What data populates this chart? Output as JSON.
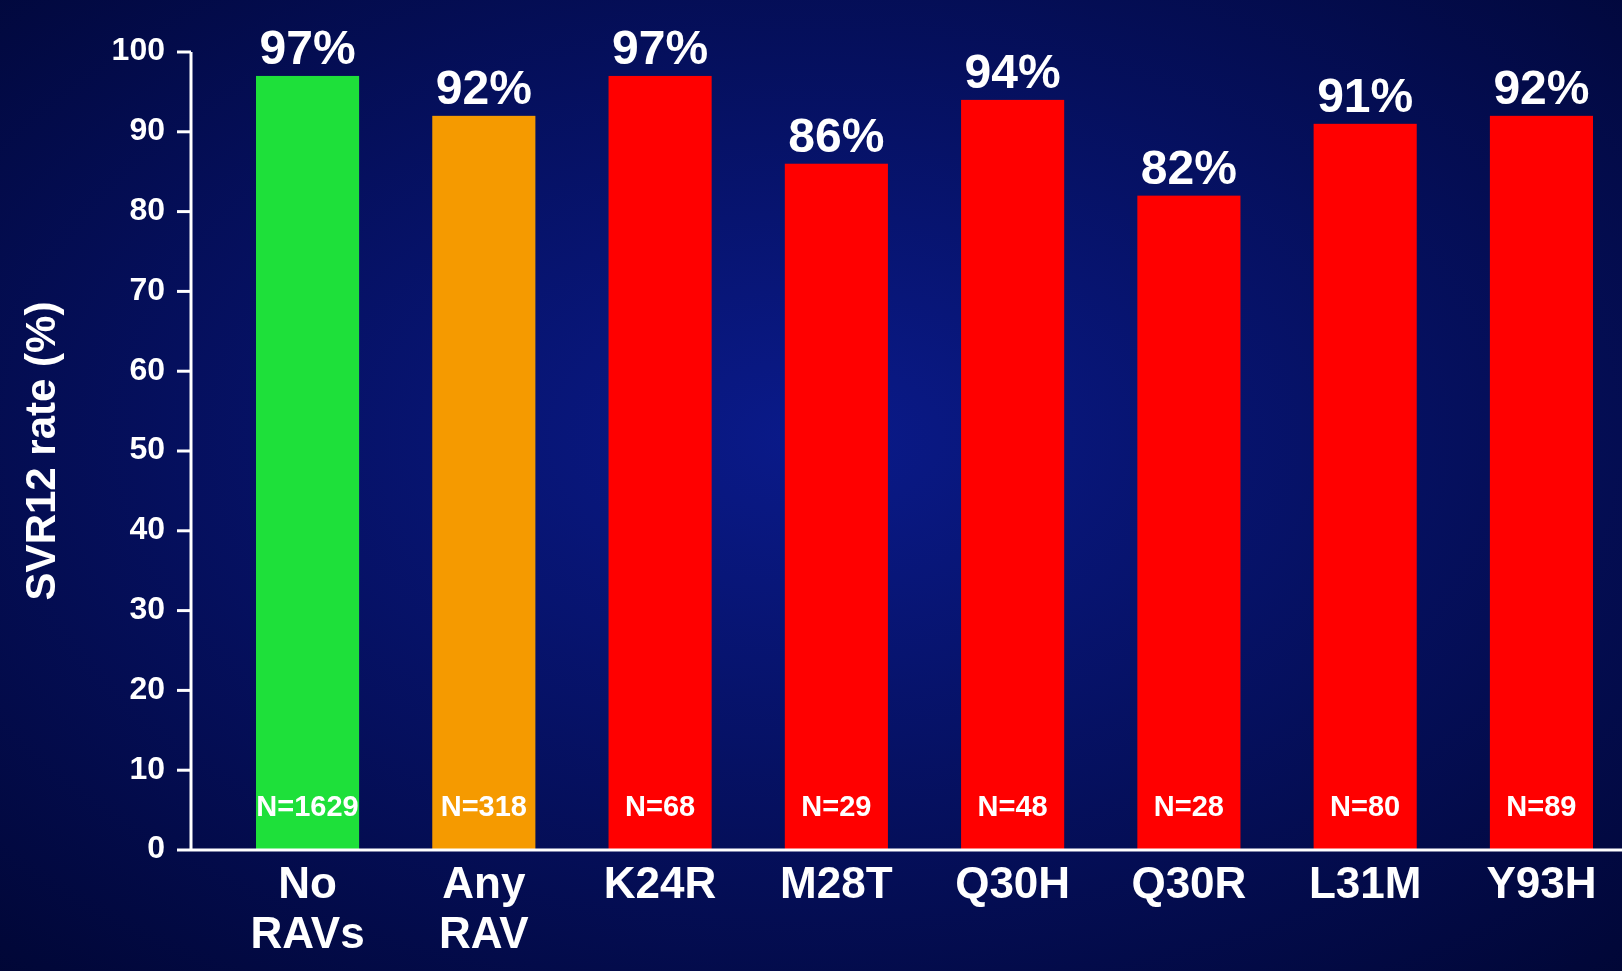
{
  "chart_data": {
    "type": "bar",
    "ylabel": "SVR12 rate (%)",
    "categories": [
      "No RAVs",
      "Any RAV",
      "K24R",
      "M28T",
      "Q30H",
      "Q30R",
      "L31M",
      "Y93H"
    ],
    "values": [
      97,
      92,
      97,
      86,
      94,
      82,
      91,
      92
    ],
    "value_labels": [
      "97%",
      "92%",
      "97%",
      "86%",
      "94%",
      "82%",
      "91%",
      "92%"
    ],
    "colors": [
      "#1ee03a",
      "#f59a00",
      "#ff0000",
      "#ff0000",
      "#ff0000",
      "#ff0000",
      "#ff0000",
      "#ff0000"
    ],
    "ylim": [
      0,
      100
    ],
    "yticks": [
      0,
      10,
      20,
      30,
      40,
      50,
      60,
      70,
      80,
      90,
      100
    ],
    "grid": false,
    "annotations": [
      "N=1629",
      "N=318",
      "N=68",
      "N=29",
      "N=48",
      "N=28",
      "N=80",
      "N=89"
    ]
  }
}
